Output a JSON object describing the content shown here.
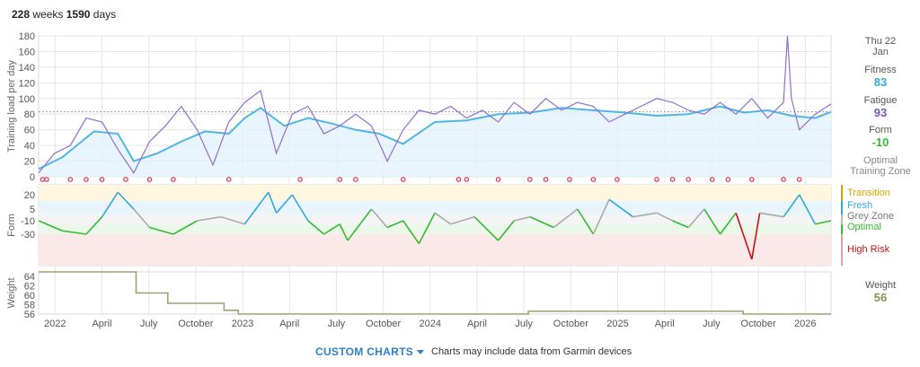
{
  "header": {
    "weeks_value": "228",
    "weeks_unit": "weeks",
    "days_value": "1590",
    "days_unit": "days"
  },
  "sidebar": {
    "date_line1": "Thu 22",
    "date_line2": "Jan",
    "fitness_label": "Fitness",
    "fitness_value": "83",
    "fatigue_label": "Fatigue",
    "fatigue_value": "93",
    "form_label": "Form",
    "form_value": "-10",
    "optimal_line1": "Optimal",
    "optimal_line2": "Training Zone",
    "weight_label": "Weight",
    "weight_value": "56"
  },
  "zones": [
    {
      "label": "Transition",
      "color": "#d4a800"
    },
    {
      "label": "Fresh",
      "color": "#33a8dd"
    },
    {
      "label": "Grey Zone",
      "color": "#777777"
    },
    {
      "label": "Optimal",
      "color": "#33bb33"
    },
    {
      "label": "High Risk",
      "color": "#cc1111"
    }
  ],
  "footer": {
    "custom_charts": "CUSTOM CHARTS",
    "note": "Charts may include data from Garmin devices"
  },
  "colors": {
    "fitness": "#4fb6e3",
    "fatigue": "#8f6fd0",
    "weight": "#a0a070",
    "grid": "#e6e6e6"
  },
  "chart_data": [
    {
      "type": "line",
      "ylabel": "Training load per day",
      "yticks": [
        0,
        20,
        40,
        60,
        80,
        100,
        120,
        140,
        160,
        180
      ],
      "ylim": [
        0,
        180
      ],
      "x_tick_labels": [
        "2022",
        "April",
        "July",
        "October",
        "2023",
        "April",
        "July",
        "October",
        "2024",
        "April",
        "July",
        "October",
        "2025",
        "April",
        "July",
        "October",
        "2026"
      ],
      "series": [
        {
          "name": "Fitness",
          "x": [
            0,
            0.03,
            0.07,
            0.1,
            0.12,
            0.15,
            0.18,
            0.21,
            0.24,
            0.26,
            0.28,
            0.31,
            0.34,
            0.37,
            0.4,
            0.43,
            0.46,
            0.5,
            0.54,
            0.58,
            0.62,
            0.66,
            0.7,
            0.74,
            0.78,
            0.82,
            0.86,
            0.89,
            0.92,
            0.95,
            0.98,
            1.0
          ],
          "values": [
            10,
            25,
            58,
            55,
            20,
            30,
            45,
            58,
            55,
            75,
            88,
            65,
            75,
            68,
            60,
            55,
            42,
            70,
            72,
            80,
            82,
            88,
            85,
            82,
            78,
            80,
            90,
            82,
            85,
            78,
            75,
            83
          ]
        },
        {
          "name": "Fatigue",
          "x": [
            0,
            0.02,
            0.04,
            0.06,
            0.08,
            0.1,
            0.12,
            0.14,
            0.16,
            0.18,
            0.2,
            0.22,
            0.24,
            0.26,
            0.28,
            0.3,
            0.32,
            0.34,
            0.36,
            0.38,
            0.4,
            0.42,
            0.44,
            0.46,
            0.48,
            0.5,
            0.52,
            0.54,
            0.56,
            0.58,
            0.6,
            0.62,
            0.64,
            0.66,
            0.68,
            0.7,
            0.72,
            0.74,
            0.76,
            0.78,
            0.8,
            0.82,
            0.84,
            0.86,
            0.88,
            0.9,
            0.92,
            0.94,
            0.945,
            0.95,
            0.96,
            0.98,
            1.0
          ],
          "values": [
            5,
            30,
            40,
            75,
            70,
            35,
            5,
            45,
            65,
            90,
            60,
            15,
            70,
            95,
            110,
            30,
            80,
            90,
            55,
            65,
            80,
            65,
            20,
            60,
            85,
            80,
            90,
            75,
            85,
            70,
            95,
            80,
            100,
            85,
            95,
            90,
            70,
            80,
            90,
            100,
            95,
            85,
            80,
            95,
            80,
            100,
            75,
            95,
            180,
            100,
            60,
            80,
            93
          ]
        }
      ],
      "markers_row": "injury/event markers below chart"
    },
    {
      "type": "line",
      "ylabel": "Form",
      "yticks": [
        20,
        5,
        -10,
        -30
      ],
      "zones": [
        "Transition",
        "Fresh",
        "Grey Zone",
        "Optimal",
        "High Risk"
      ],
      "series": [
        {
          "name": "Form",
          "x": [
            0,
            0.03,
            0.06,
            0.08,
            0.1,
            0.12,
            0.14,
            0.17,
            0.2,
            0.23,
            0.26,
            0.29,
            0.3,
            0.32,
            0.34,
            0.36,
            0.38,
            0.39,
            0.42,
            0.44,
            0.46,
            0.48,
            0.5,
            0.52,
            0.55,
            0.58,
            0.6,
            0.62,
            0.65,
            0.68,
            0.7,
            0.72,
            0.75,
            0.78,
            0.8,
            0.82,
            0.84,
            0.86,
            0.88,
            0.9,
            0.91,
            0.94,
            0.96,
            0.98,
            1.0
          ],
          "values": [
            -10,
            -25,
            -30,
            -5,
            25,
            5,
            -20,
            -30,
            -10,
            -5,
            -15,
            25,
            0,
            20,
            -10,
            -30,
            -15,
            -40,
            5,
            -20,
            -10,
            -45,
            0,
            -15,
            -5,
            -40,
            -10,
            -5,
            -20,
            5,
            -30,
            15,
            -5,
            0,
            -10,
            -20,
            5,
            -30,
            0,
            -70,
            0,
            -5,
            20,
            -15,
            -10
          ]
        }
      ]
    },
    {
      "type": "line",
      "ylabel": "Weight",
      "yticks": [
        56,
        58,
        60,
        62,
        64
      ],
      "ylim": [
        56,
        65
      ],
      "series": [
        {
          "name": "Weight",
          "x": [
            0,
            0.123,
            0.123,
            0.163,
            0.163,
            0.234,
            0.234,
            0.252,
            0.252,
            0.618,
            0.618,
            0.889,
            0.889,
            1.0
          ],
          "values": [
            65,
            65,
            60.5,
            60.5,
            58.3,
            58.3,
            56.8,
            56.8,
            56,
            56,
            56.6,
            56.6,
            56,
            56
          ]
        }
      ]
    }
  ]
}
